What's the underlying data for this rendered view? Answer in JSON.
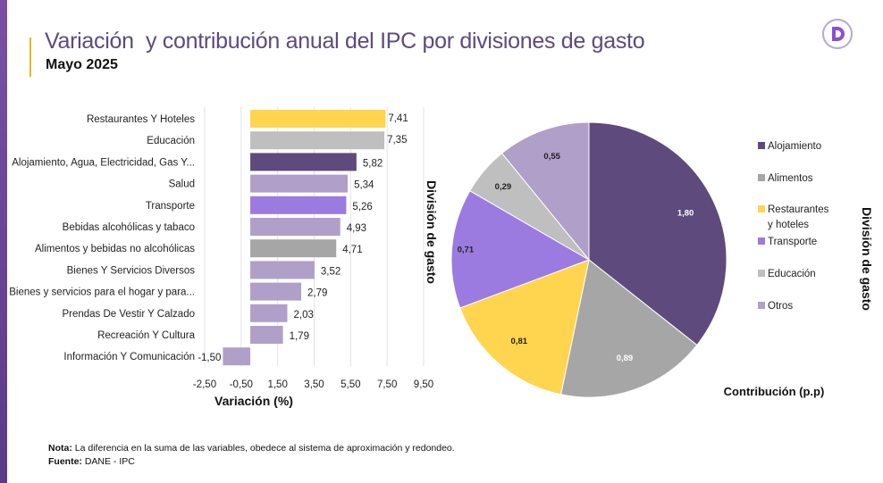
{
  "header": {
    "title": "Variación  y contribución anual del IPC por divisiones de gasto",
    "subtitle": "Mayo 2025",
    "logo_icon": "dane-d-logo"
  },
  "chart_data": [
    {
      "type": "bar",
      "orientation": "horizontal",
      "categories": [
        "Restaurantes Y Hoteles",
        "Educación",
        "Alojamiento, Agua, Electricidad, Gas Y...",
        "Salud",
        "Transporte",
        "Bebidas alcohólicas y tabaco",
        "Alimentos y bebidas no alcohólicas",
        "Bienes Y Servicios Diversos",
        "Bienes y servicios para el hogar y para...",
        "Prendas De Vestir Y Calzado",
        "Recreación Y Cultura",
        "Información Y Comunicación"
      ],
      "values": [
        7.41,
        7.35,
        5.82,
        5.34,
        5.26,
        4.93,
        4.71,
        3.52,
        2.79,
        2.03,
        1.79,
        -1.5
      ],
      "value_labels": [
        "7,41",
        "7,35",
        "5,82",
        "5,34",
        "5,26",
        "4,93",
        "4,71",
        "3,52",
        "2,79",
        "2,03",
        "1,79",
        "-1,50"
      ],
      "colors": [
        "#ffd54f",
        "#bfbfbf",
        "#5e4a7c",
        "#b09fc8",
        "#9b7be0",
        "#b09fc8",
        "#a6a6a6",
        "#b09fc8",
        "#b09fc8",
        "#b09fc8",
        "#b09fc8",
        "#b09fc8"
      ],
      "xlabel": "Variación (%)",
      "ylabel": "División de gasto",
      "xlim": [
        -2.5,
        9.5
      ],
      "xticks": [
        -2.5,
        -0.5,
        1.5,
        3.5,
        5.5,
        7.5,
        9.5
      ],
      "xtick_labels": [
        "-2,50",
        "-0,50",
        "1,50",
        "3,50",
        "5,50",
        "7,50",
        "9,50"
      ],
      "grid": true
    },
    {
      "type": "pie",
      "categories": [
        "Alojamiento",
        "Alimentos",
        "Restaurantes y hoteles",
        "Transporte",
        "Educación",
        "Otros"
      ],
      "values": [
        1.8,
        0.89,
        0.81,
        0.71,
        0.29,
        0.55
      ],
      "value_labels": [
        "1,80",
        "0,89",
        "0,81",
        "0,71",
        "0,29",
        "0,55"
      ],
      "colors": [
        "#5e4a7c",
        "#a6a6a6",
        "#ffd54f",
        "#9b7be0",
        "#bfbfbf",
        "#b09fc8"
      ],
      "label_colors": [
        "#ffffff",
        "#ffffff",
        "#222222",
        "#222222",
        "#222222",
        "#222222"
      ],
      "legend": {
        "position": "right",
        "entries": [
          "Alojamiento",
          "Alimentos",
          "Restaurantes\ny hoteles",
          "Transporte",
          "Educación",
          "Otros"
        ]
      },
      "xlabel": "Contribución (p.p)",
      "ylabel": "División de gasto"
    }
  ],
  "footer": {
    "note_label": "Nota:",
    "note_text": " La diferencia en la suma de las variables, obedece al sistema de aproximación y redondeo.",
    "source_label": "Fuente:",
    "source_text": " DANE - IPC"
  }
}
